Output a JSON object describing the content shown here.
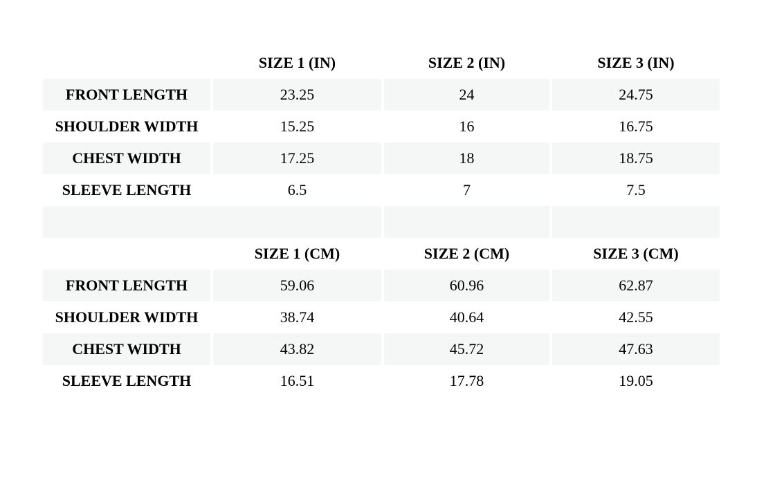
{
  "page": {
    "background_color": "#ffffff",
    "text_color": "#000000",
    "stripe_color": "#f4f7f6"
  },
  "size_chart": {
    "sections": [
      {
        "unit": "inches",
        "columns": [
          "",
          "SIZE 1 (IN)",
          "SIZE 2 (IN)",
          "SIZE 3 (IN)"
        ],
        "rows": [
          {
            "label": "FRONT LENGTH",
            "values": [
              "23.25",
              "24",
              "24.75"
            ]
          },
          {
            "label": "SHOULDER WIDTH",
            "values": [
              "15.25",
              "16",
              "16.75"
            ]
          },
          {
            "label": "CHEST WIDTH",
            "values": [
              "17.25",
              "18",
              "18.75"
            ]
          },
          {
            "label": "SLEEVE LENGTH",
            "values": [
              "6.5",
              "7",
              "7.5"
            ]
          }
        ]
      },
      {
        "unit": "centimeters",
        "columns": [
          "",
          "SIZE 1 (CM)",
          "SIZE 2 (CM)",
          "SIZE 3 (CM)"
        ],
        "rows": [
          {
            "label": "FRONT LENGTH",
            "values": [
              "59.06",
              "60.96",
              "62.87"
            ]
          },
          {
            "label": "SHOULDER WIDTH",
            "values": [
              "38.74",
              "40.64",
              "42.55"
            ]
          },
          {
            "label": "CHEST WIDTH",
            "values": [
              "43.82",
              "45.72",
              "47.63"
            ]
          },
          {
            "label": "SLEEVE LENGTH",
            "values": [
              "16.51",
              "17.78",
              "19.05"
            ]
          }
        ]
      }
    ]
  }
}
